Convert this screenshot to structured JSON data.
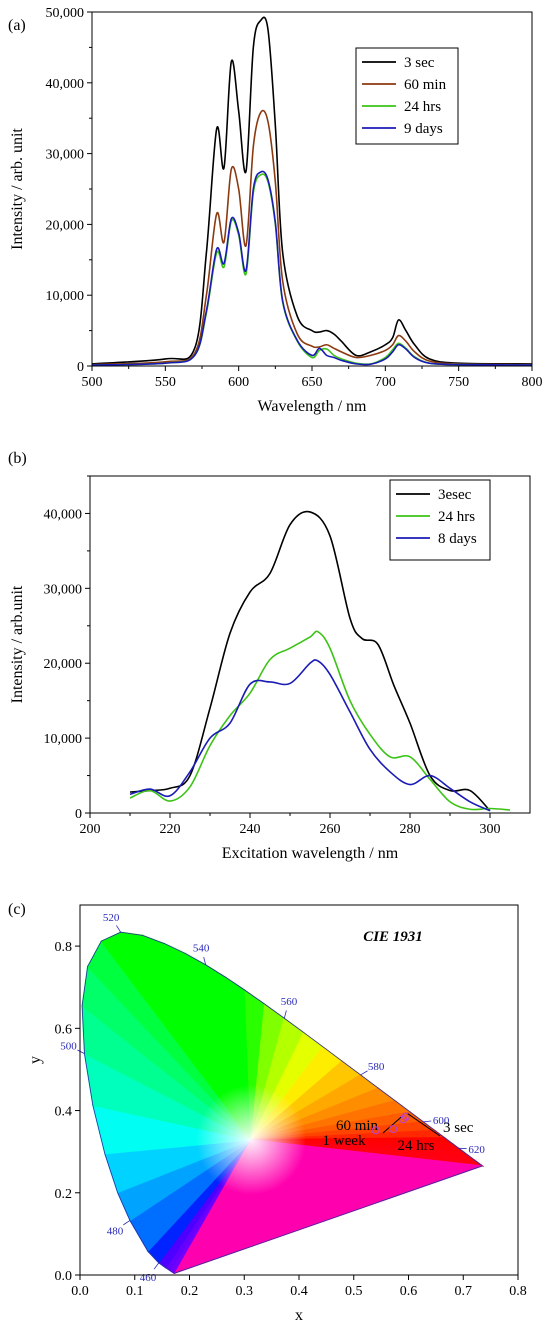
{
  "chart_data": [
    {
      "type": "line",
      "panel_label": "(a)",
      "xlabel": "Wavelength / nm",
      "ylabel": "Intensity / arb. unit",
      "xlim": [
        500,
        800
      ],
      "ylim": [
        0,
        50000
      ],
      "xticks": [
        500,
        550,
        600,
        650,
        700,
        750,
        800
      ],
      "xtick_labels": [
        "500",
        "550",
        "600",
        "650",
        "700",
        "750",
        "800"
      ],
      "yticks": [
        0,
        10000,
        20000,
        30000,
        40000,
        50000
      ],
      "ytick_labels": [
        "0",
        "10,000",
        "20,000",
        "30,000",
        "40,000",
        "50,000"
      ],
      "legend_position": "top-right",
      "series": [
        {
          "name": "3 sec",
          "color": "#000000",
          "x": [
            500,
            550,
            570,
            578,
            585,
            590,
            595,
            600,
            605,
            610,
            615,
            620,
            625,
            630,
            640,
            650,
            655,
            660,
            665,
            670,
            680,
            690,
            700,
            705,
            709,
            714,
            720,
            730,
            750,
            800
          ],
          "y": [
            300,
            1000,
            2500,
            16000,
            33500,
            28000,
            43000,
            36000,
            27500,
            45000,
            48800,
            47500,
            34000,
            16000,
            7000,
            5000,
            4800,
            5000,
            4500,
            3500,
            1500,
            2000,
            3000,
            4000,
            6500,
            5000,
            3000,
            1000,
            400,
            300
          ]
        },
        {
          "name": "60 min",
          "color": "#8b3a10",
          "x": [
            500,
            550,
            570,
            578,
            585,
            590,
            595,
            600,
            605,
            610,
            615,
            620,
            625,
            630,
            640,
            650,
            655,
            660,
            665,
            670,
            680,
            690,
            700,
            705,
            709,
            714,
            720,
            730,
            750,
            800
          ],
          "y": [
            200,
            600,
            1800,
            10000,
            21500,
            17500,
            27800,
            25000,
            17000,
            31000,
            35800,
            34500,
            26000,
            12000,
            4500,
            2800,
            2700,
            3000,
            2500,
            2000,
            1200,
            1500,
            2200,
            3000,
            4300,
            3500,
            2000,
            700,
            300,
            200
          ]
        },
        {
          "name": "24 hrs",
          "color": "#3cc316",
          "x": [
            500,
            550,
            570,
            578,
            585,
            590,
            595,
            600,
            605,
            610,
            615,
            620,
            625,
            630,
            640,
            650,
            655,
            660,
            665,
            670,
            680,
            690,
            700,
            705,
            709,
            714,
            720,
            730,
            750,
            800
          ],
          "y": [
            150,
            400,
            1500,
            7500,
            16000,
            14000,
            20500,
            18500,
            13000,
            24500,
            27000,
            26000,
            20000,
            9000,
            3500,
            1200,
            2200,
            2400,
            1500,
            1000,
            400,
            300,
            1200,
            2300,
            3200,
            2500,
            1300,
            400,
            200,
            150
          ]
        },
        {
          "name": "9 days",
          "color": "#1b1bb5",
          "x": [
            500,
            550,
            570,
            578,
            585,
            590,
            595,
            600,
            605,
            610,
            615,
            620,
            625,
            630,
            640,
            650,
            655,
            660,
            665,
            670,
            680,
            690,
            700,
            705,
            709,
            714,
            720,
            730,
            750,
            800
          ],
          "y": [
            150,
            400,
            1500,
            7800,
            16500,
            14500,
            20800,
            18800,
            13500,
            25000,
            27400,
            26300,
            20300,
            9200,
            3600,
            1500,
            2500,
            1500,
            1200,
            800,
            300,
            250,
            1000,
            2000,
            3000,
            2400,
            1200,
            400,
            200,
            150
          ]
        }
      ]
    },
    {
      "type": "line",
      "panel_label": "(b)",
      "xlabel": "Excitation wavelength / nm",
      "ylabel": "Intensity / arb.unit",
      "xlim": [
        200,
        310
      ],
      "ylim": [
        0,
        45000
      ],
      "xticks": [
        200,
        220,
        240,
        260,
        280,
        300
      ],
      "xtick_labels": [
        "200",
        "220",
        "240",
        "260",
        "280",
        "300"
      ],
      "yticks": [
        0,
        10000,
        20000,
        30000,
        40000
      ],
      "ytick_labels": [
        "0",
        "10,000",
        "20,000",
        "30,000",
        "40,000"
      ],
      "legend_position": "top-right",
      "series": [
        {
          "name": "3esec",
          "color": "#000000",
          "x": [
            210,
            215,
            220,
            225,
            230,
            235,
            240,
            245,
            250,
            255,
            260,
            265,
            268,
            272,
            276,
            280,
            285,
            290,
            295,
            300
          ],
          "y": [
            2800,
            3000,
            3300,
            5000,
            14000,
            24000,
            29500,
            32000,
            38500,
            40200,
            37000,
            26000,
            23300,
            22500,
            17000,
            12000,
            5000,
            3000,
            3000,
            300
          ]
        },
        {
          "name": "24 hrs",
          "color": "#3cc316",
          "x": [
            210,
            215,
            220,
            225,
            230,
            235,
            240,
            245,
            250,
            255,
            257,
            260,
            265,
            270,
            275,
            280,
            285,
            290,
            295,
            300,
            305
          ],
          "y": [
            2000,
            3000,
            1600,
            3500,
            9000,
            13000,
            16000,
            20500,
            22000,
            23500,
            24200,
            22000,
            15000,
            10500,
            7500,
            7500,
            4500,
            1500,
            500,
            600,
            400
          ]
        },
        {
          "name": "8 days",
          "color": "#1b1bb5",
          "x": [
            210,
            215,
            220,
            225,
            230,
            235,
            240,
            245,
            250,
            255,
            257,
            260,
            265,
            270,
            275,
            280,
            285,
            290,
            295,
            300
          ],
          "y": [
            2500,
            3200,
            2300,
            5500,
            10000,
            12000,
            17200,
            17500,
            17300,
            20000,
            20300,
            18500,
            13500,
            8500,
            5500,
            3800,
            5000,
            3300,
            1500,
            300
          ]
        }
      ]
    },
    {
      "type": "scatter",
      "panel_label": "(c)",
      "title": "CIE 1931",
      "xlabel": "x",
      "ylabel": "y",
      "xlim": [
        0.0,
        0.8
      ],
      "ylim": [
        0.0,
        0.9
      ],
      "xticks": [
        0.0,
        0.1,
        0.2,
        0.3,
        0.4,
        0.5,
        0.6,
        0.7,
        0.8
      ],
      "xtick_labels": [
        "0.0",
        "0.1",
        "0.2",
        "0.3",
        "0.4",
        "0.5",
        "0.6",
        "0.7",
        "0.8"
      ],
      "yticks": [
        0.0,
        0.2,
        0.4,
        0.6,
        0.8
      ],
      "ytick_labels": [
        "0.0",
        "0.2",
        "0.4",
        "0.6",
        "0.8"
      ],
      "locus": {
        "x": [
          0.1741,
          0.1738,
          0.1733,
          0.1726,
          0.1714,
          0.1689,
          0.1644,
          0.1566,
          0.144,
          0.1241,
          0.0913,
          0.0687,
          0.0454,
          0.0235,
          0.0082,
          0.0039,
          0.0139,
          0.0389,
          0.0743,
          0.1142,
          0.1547,
          0.1929,
          0.2296,
          0.2658,
          0.3016,
          0.3373,
          0.3731,
          0.4087,
          0.4441,
          0.4788,
          0.5125,
          0.5448,
          0.5752,
          0.6029,
          0.627,
          0.6482,
          0.6658,
          0.6801,
          0.6915,
          0.7006,
          0.7079,
          0.714,
          0.719,
          0.723,
          0.726,
          0.7283,
          0.73,
          0.7311,
          0.732,
          0.7327,
          0.7334,
          0.734,
          0.7344,
          0.7346,
          0.7347
        ],
        "y": [
          0.005,
          0.0049,
          0.0048,
          0.0048,
          0.0051,
          0.0069,
          0.0109,
          0.0177,
          0.0297,
          0.0578,
          0.1327,
          0.2007,
          0.295,
          0.4127,
          0.5384,
          0.6548,
          0.7502,
          0.812,
          0.8338,
          0.8262,
          0.8059,
          0.7816,
          0.7543,
          0.7243,
          0.6923,
          0.6589,
          0.6245,
          0.5896,
          0.5547,
          0.5202,
          0.4866,
          0.4544,
          0.4242,
          0.3965,
          0.3725,
          0.3514,
          0.334,
          0.3197,
          0.3083,
          0.2993,
          0.292,
          0.2859,
          0.2809,
          0.277,
          0.274,
          0.2717,
          0.27,
          0.2689,
          0.268,
          0.2673,
          0.2666,
          0.266,
          0.2656,
          0.2654,
          0.2653
        ]
      },
      "wavelength_labels": [
        {
          "text": "460",
          "x": 0.144,
          "y": 0.0297
        },
        {
          "text": "480",
          "x": 0.0913,
          "y": 0.1327
        },
        {
          "text": "500",
          "x": 0.0082,
          "y": 0.5384
        },
        {
          "text": "520",
          "x": 0.0743,
          "y": 0.8338
        },
        {
          "text": "540",
          "x": 0.2296,
          "y": 0.7543
        },
        {
          "text": "560",
          "x": 0.3731,
          "y": 0.6245
        },
        {
          "text": "580",
          "x": 0.5125,
          "y": 0.4866
        },
        {
          "text": "600",
          "x": 0.627,
          "y": 0.3725
        },
        {
          "text": "620",
          "x": 0.6915,
          "y": 0.3083
        }
      ],
      "points": [
        {
          "label": "3 sec",
          "x": 0.595,
          "y": 0.385
        },
        {
          "label": "60 min",
          "x": 0.59,
          "y": 0.379
        },
        {
          "label": "24 hrs",
          "x": 0.572,
          "y": 0.355
        },
        {
          "label": "1 week",
          "x": 0.54,
          "y": 0.352
        }
      ]
    }
  ]
}
